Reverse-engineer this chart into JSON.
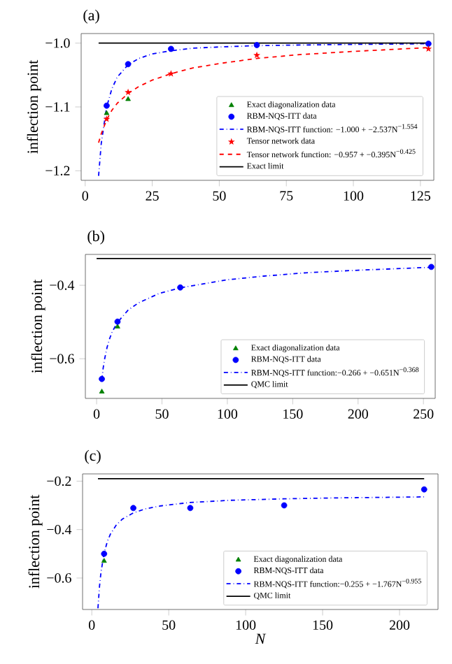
{
  "chart_data": [
    {
      "type": "line",
      "title": "(a)",
      "ylabel": "inflection point",
      "xlim": [
        -1.5,
        130
      ],
      "ylim": [
        -1.215,
        -0.985
      ],
      "xticks": [
        0,
        25,
        50,
        75,
        100,
        125
      ],
      "yticks": [
        {
          "value": -1.2,
          "label": "−1.2"
        },
        {
          "value": -1.1,
          "label": "−1.1"
        },
        {
          "value": -1.0,
          "label": "−1.0"
        }
      ],
      "legend": "bottom right",
      "series": [
        {
          "name": "Exact diagonalization data",
          "type": "scatter",
          "color": "#008000",
          "marker": "triangle",
          "x": [
            8,
            16
          ],
          "values": [
            -1.11,
            -1.088
          ]
        },
        {
          "name": "RBM-NQS-ITT data",
          "type": "scatter",
          "color": "#0000ff",
          "marker": "circle",
          "x": [
            8,
            16,
            32,
            64,
            128
          ],
          "values": [
            -1.098,
            -1.033,
            -1.009,
            -1.003,
            -1.001
          ]
        },
        {
          "name": "RBM-NQS-ITT function: −1.000 + −2.537N$^{−1.554}$",
          "type": "line",
          "color": "#0000ff",
          "line_style": "dashdot",
          "x": [
            5,
            6,
            8,
            10,
            12,
            16,
            20,
            25,
            32,
            40,
            50,
            64,
            80,
            100,
            128
          ],
          "values": [
            -1.208,
            -1.157,
            -1.1,
            -1.071,
            -1.053,
            -1.034,
            -1.024,
            -1.017,
            -1.012,
            -1.008,
            -1.006,
            -1.004,
            -1.003,
            -1.002,
            -1.001
          ]
        },
        {
          "name": "Tensor network data",
          "type": "scatter",
          "color": "#ff0000",
          "marker": "star",
          "x": [
            8,
            16,
            32,
            64,
            128
          ],
          "values": [
            -1.119,
            -1.077,
            -1.048,
            -1.019,
            -1.009
          ]
        },
        {
          "name": "Tensor network function: −0.957 + −0.395N$^{−0.425}$",
          "type": "line",
          "color": "#ff0000",
          "line_style": "dashed",
          "x": [
            5,
            6,
            8,
            10,
            12,
            16,
            20,
            25,
            32,
            40,
            50,
            64,
            80,
            100,
            128
          ],
          "values": [
            -1.156,
            -1.142,
            -1.12,
            -1.105,
            -1.094,
            -1.079,
            -1.068,
            -1.058,
            -1.048,
            -1.039,
            -1.032,
            -1.024,
            -1.018,
            -1.013,
            -1.007
          ]
        },
        {
          "name": "Exact limit",
          "type": "line",
          "color": "#000000",
          "line_style": "solid",
          "x": [
            5,
            128
          ],
          "values": [
            -1.0,
            -1.0
          ]
        }
      ]
    },
    {
      "type": "line",
      "title": "(b)",
      "ylabel": "inflection point",
      "xlim": [
        -8.6,
        259
      ],
      "ylim": [
        -0.708,
        -0.316
      ],
      "xticks": [
        0,
        50,
        100,
        150,
        200,
        250
      ],
      "yticks": [
        {
          "value": -0.6,
          "label": "−0.6"
        },
        {
          "value": -0.4,
          "label": "−0.4"
        }
      ],
      "legend": "bottom right",
      "series": [
        {
          "name": "Exact diagonalization data",
          "type": "scatter",
          "color": "#008000",
          "marker": "triangle",
          "x": [
            4,
            16
          ],
          "values": [
            -0.69,
            -0.513
          ]
        },
        {
          "name": "RBM-NQS-ITT data",
          "type": "scatter",
          "color": "#0000ff",
          "marker": "circle",
          "x": [
            4,
            16,
            64,
            256
          ],
          "values": [
            -0.655,
            -0.499,
            -0.406,
            -0.35
          ]
        },
        {
          "name": "RBM-NQS-ITT function:−0.266 + −0.651N$^{−0.368}$",
          "type": "line",
          "color": "#0000ff",
          "line_style": "dashdot",
          "x": [
            4,
            5,
            6,
            8,
            10,
            12,
            16,
            24,
            32,
            48,
            64,
            100,
            128,
            160,
            200,
            256
          ],
          "values": [
            -0.657,
            -0.626,
            -0.603,
            -0.569,
            -0.545,
            -0.526,
            -0.501,
            -0.468,
            -0.448,
            -0.422,
            -0.407,
            -0.385,
            -0.375,
            -0.366,
            -0.359,
            -0.351
          ]
        },
        {
          "name": "QMC limit",
          "type": "line",
          "color": "#000000",
          "line_style": "solid",
          "x": [
            0,
            256
          ],
          "values": [
            -0.327,
            -0.327
          ]
        }
      ]
    },
    {
      "type": "line",
      "title": "(c)",
      "xlabel": "N",
      "ylabel": "inflection point",
      "xlim": [
        -6,
        225
      ],
      "ylim": [
        -0.73,
        -0.17
      ],
      "xticks": [
        0,
        50,
        100,
        150,
        200
      ],
      "yticks": [
        {
          "value": -0.6,
          "label": "−0.6"
        },
        {
          "value": -0.4,
          "label": "−0.4"
        },
        {
          "value": -0.2,
          "label": "−0.2"
        }
      ],
      "legend": "bottom right",
      "series": [
        {
          "name": "Exact diagonalization data",
          "type": "scatter",
          "color": "#008000",
          "marker": "triangle",
          "x": [
            8
          ],
          "values": [
            -0.53
          ]
        },
        {
          "name": "RBM-NQS-ITT data",
          "type": "scatter",
          "color": "#0000ff",
          "marker": "circle",
          "x": [
            8,
            27,
            64,
            125,
            216
          ],
          "values": [
            -0.5,
            -0.311,
            -0.311,
            -0.3,
            -0.234
          ]
        },
        {
          "name": "RBM-NQS-ITT function:−0.255 + −1.767N$^{−0.955}$",
          "type": "line",
          "color": "#0000ff",
          "line_style": "dashdot",
          "x": [
            4,
            5,
            6,
            8,
            10,
            12,
            16,
            20,
            27,
            35,
            45,
            64,
            90,
            125,
            160,
            216
          ],
          "values": [
            -0.725,
            -0.635,
            -0.575,
            -0.498,
            -0.451,
            -0.42,
            -0.38,
            -0.356,
            -0.331,
            -0.314,
            -0.302,
            -0.288,
            -0.279,
            -0.273,
            -0.269,
            -0.265
          ]
        },
        {
          "name": "QMC limit",
          "type": "line",
          "color": "#000000",
          "line_style": "solid",
          "x": [
            4,
            216
          ],
          "values": [
            -0.19,
            -0.19
          ]
        }
      ]
    }
  ]
}
